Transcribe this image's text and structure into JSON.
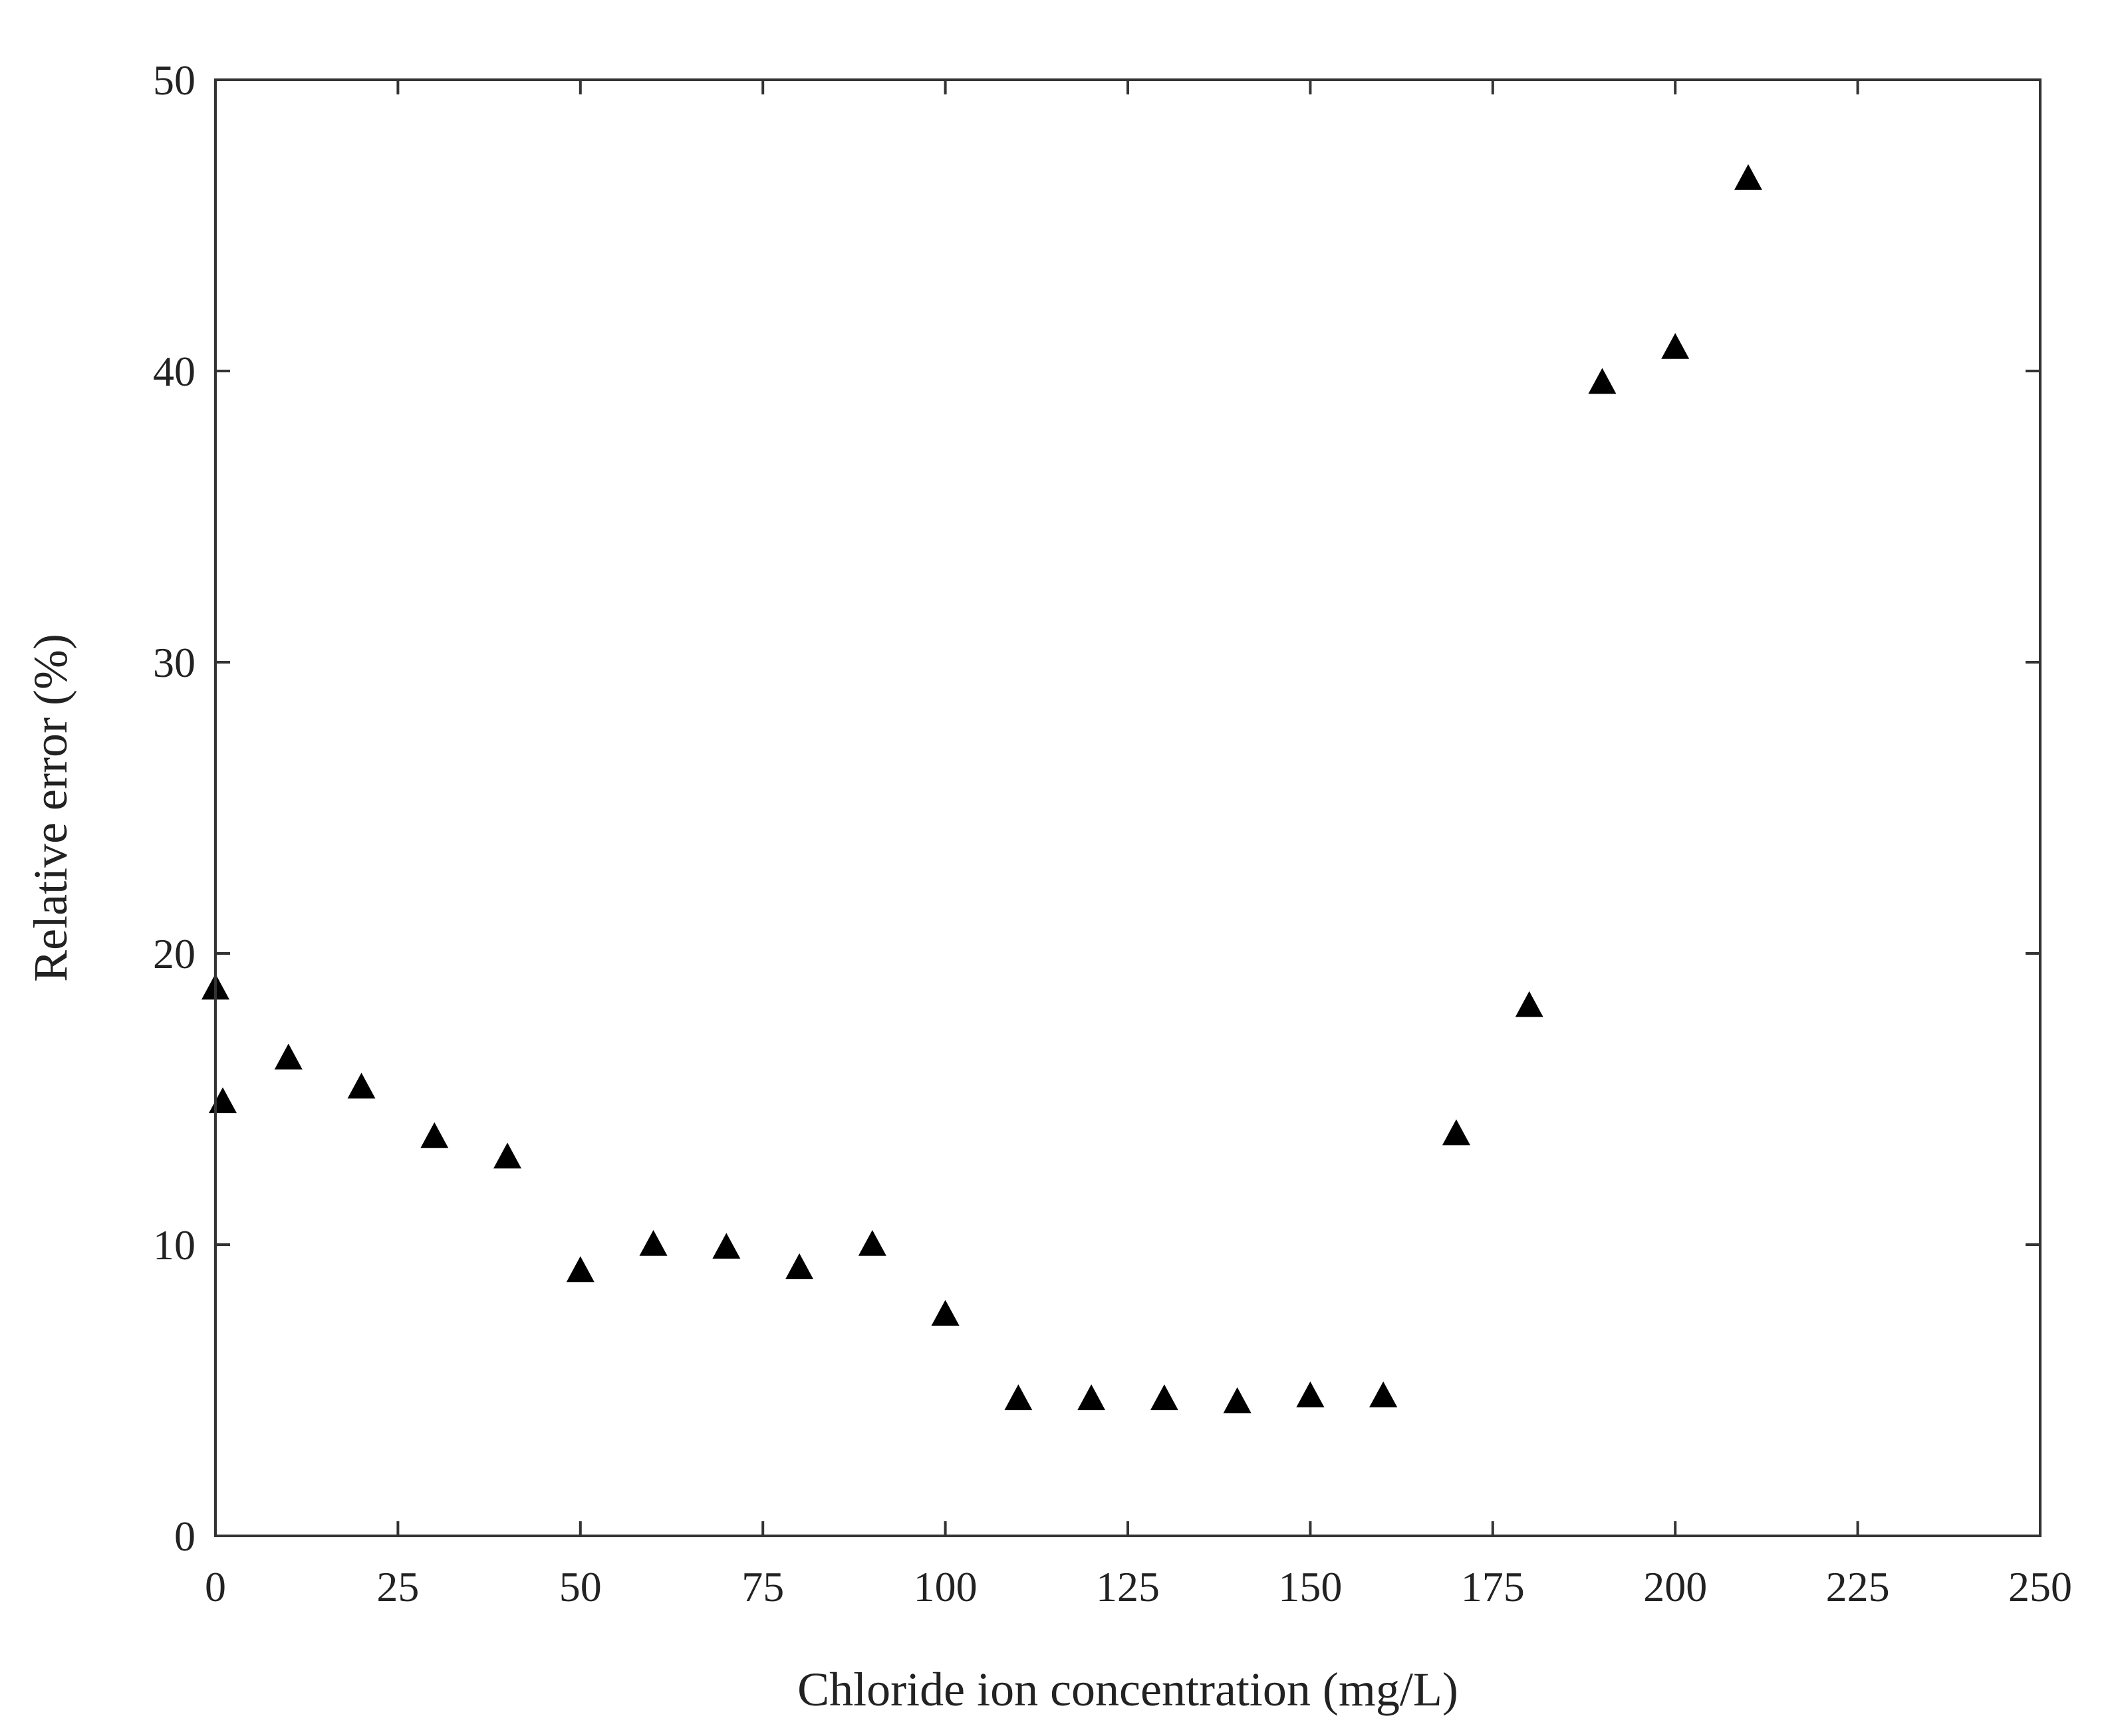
{
  "chart_data": {
    "type": "scatter",
    "title": "",
    "xlabel": "Chloride ion concentration (mg/L)",
    "ylabel": "Relative error (%)",
    "xlim": [
      0,
      250
    ],
    "ylim": [
      0,
      50
    ],
    "xticks": [
      0,
      25,
      50,
      75,
      100,
      125,
      150,
      175,
      200,
      225,
      250
    ],
    "yticks": [
      0,
      10,
      20,
      30,
      40,
      50
    ],
    "grid": false,
    "legend": "none",
    "marker": "filled-triangle",
    "marker_color": "#000000",
    "series": [
      {
        "points": [
          {
            "x": 0,
            "y": 18.8
          },
          {
            "x": 1,
            "y": 14.9
          },
          {
            "x": 10,
            "y": 16.4
          },
          {
            "x": 20,
            "y": 15.4
          },
          {
            "x": 30,
            "y": 13.7
          },
          {
            "x": 40,
            "y": 13.0
          },
          {
            "x": 50,
            "y": 9.1
          },
          {
            "x": 60,
            "y": 10.0
          },
          {
            "x": 70,
            "y": 9.9
          },
          {
            "x": 80,
            "y": 9.2
          },
          {
            "x": 90,
            "y": 10.0
          },
          {
            "x": 100,
            "y": 7.6
          },
          {
            "x": 110,
            "y": 4.7
          },
          {
            "x": 120,
            "y": 4.7
          },
          {
            "x": 130,
            "y": 4.7
          },
          {
            "x": 140,
            "y": 4.6
          },
          {
            "x": 150,
            "y": 4.8
          },
          {
            "x": 160,
            "y": 4.8
          },
          {
            "x": 170,
            "y": 13.8
          },
          {
            "x": 180,
            "y": 18.2
          },
          {
            "x": 190,
            "y": 39.6
          },
          {
            "x": 200,
            "y": 40.8
          },
          {
            "x": 210,
            "y": 46.6
          }
        ]
      }
    ]
  }
}
